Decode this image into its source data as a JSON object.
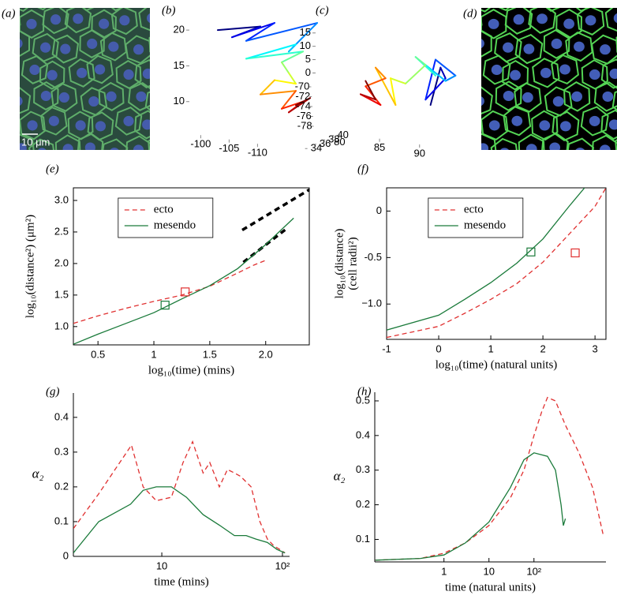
{
  "chart_data": [
    {
      "type": "image",
      "label": "(a)",
      "scale_bar": "10 μm",
      "background": "#2a4a3e",
      "edge_color": "#5fae6a",
      "nucleus_color": "#4a5fbf"
    },
    {
      "type": "trajectory3d",
      "label": "(b)",
      "colormap": "jet",
      "yaxis_side": "right",
      "xlim": [
        -98,
        -118
      ],
      "xticks": [
        -100,
        -105,
        -110
      ],
      "ylim": [
        33,
        41
      ],
      "yticks": [
        34,
        36,
        38,
        40
      ],
      "zlim": [
        6,
        22
      ],
      "zticks": [
        10,
        15,
        20
      ],
      "series": [
        {
          "x": [
            -102,
            -108,
            -104,
            -110,
            -106,
            -116,
            -112,
            -113,
            -106,
            -114,
            -111,
            -112,
            -113,
            -110,
            -108,
            -113,
            -111,
            -114,
            -112,
            -115,
            -113
          ],
          "z": [
            20,
            20.5,
            19,
            21,
            18.5,
            21,
            17,
            18,
            16,
            17,
            15.5,
            14,
            12.5,
            13,
            11,
            11.5,
            9,
            10,
            8.5,
            10.5,
            9.5
          ]
        }
      ]
    },
    {
      "type": "trajectory3d",
      "label": "(c)",
      "colormap": "jet",
      "yaxis_side": "left",
      "xlim": [
        77,
        92
      ],
      "xticks": [
        80,
        85,
        90
      ],
      "ylim": [
        -79,
        -69
      ],
      "yticks": [
        -70,
        -72,
        -74,
        -76,
        -78
      ],
      "zlim": [
        -20,
        17
      ],
      "zticks": [
        15,
        10,
        5,
        0
      ],
      "series": [
        {
          "x": [
            88.5,
            89.5,
            90,
            88,
            89,
            91,
            90,
            88,
            89,
            87,
            88,
            86,
            84.5,
            85,
            83,
            84,
            82,
            83.5,
            81.5,
            83,
            82
          ],
          "z": [
            -12,
            2,
            -2,
            -10,
            5,
            -1,
            -3,
            3,
            -1,
            6,
            3,
            -4,
            -2,
            -12,
            2,
            -2,
            -5,
            -12,
            -8,
            -10,
            -3
          ]
        }
      ]
    },
    {
      "type": "image",
      "label": "(d)",
      "background": "#000000",
      "edge_color": "#54d454",
      "nucleus_color": "#4f6fd8"
    },
    {
      "type": "line",
      "label": "(e)",
      "box": true,
      "legend": "upper left",
      "xlabel": "log₁₀(time) (mins)",
      "ylabel": [
        "log₁₀(distance²)  (μm²)"
      ],
      "xlim": [
        0.28,
        2.39
      ],
      "ylim": [
        0.71,
        3.2
      ],
      "xticks": [
        0.5,
        1,
        1.5,
        {
          "value": 2,
          "label": "2.0"
        }
      ],
      "yticks": [
        {
          "value": 1,
          "label": "1.0"
        },
        1.5,
        {
          "value": 2,
          "label": "2.0"
        },
        2.5,
        {
          "value": 3,
          "label": "3.0"
        }
      ],
      "series": [
        {
          "name": "ecto",
          "color": "#e03030",
          "dash": "dashed",
          "x": [
            0.28,
            0.5,
            0.75,
            1.0,
            1.25,
            1.5,
            1.75,
            1.9,
            2.0
          ],
          "values": [
            1.05,
            1.17,
            1.29,
            1.4,
            1.5,
            1.64,
            1.85,
            1.98,
            2.05
          ]
        },
        {
          "name": "mesendo",
          "color": "#1a7a3a",
          "dash": "solid",
          "x": [
            0.28,
            0.5,
            0.75,
            1.0,
            1.25,
            1.5,
            1.75,
            2.0,
            2.25
          ],
          "values": [
            0.72,
            0.88,
            1.05,
            1.22,
            1.44,
            1.65,
            1.92,
            2.3,
            2.72
          ]
        }
      ],
      "fit_lines": [
        {
          "color": "#000000",
          "x": [
            1.79,
            2.39
          ],
          "values": [
            2.53,
            3.17
          ]
        },
        {
          "color": "#000000",
          "x": [
            1.8,
            2.2
          ],
          "values": [
            2.02,
            2.57
          ]
        }
      ],
      "markers": [
        {
          "color": "#1a7a3a",
          "x": 1.1,
          "value": 1.34
        },
        {
          "color": "#e03030",
          "x": 1.28,
          "value": 1.55
        }
      ]
    },
    {
      "type": "line",
      "label": "(f)",
      "box": true,
      "legend": "upper left",
      "xlabel": "log₁₀(time) (natural units)",
      "ylabel": [
        "log₁₀(distance)",
        "(cell radii²)"
      ],
      "xlim": [
        -1,
        3.21
      ],
      "ylim": [
        -1.38,
        0.25
      ],
      "xticks": [
        -1,
        0,
        1,
        2,
        3
      ],
      "yticks": [
        0,
        -0.5,
        {
          "value": -1,
          "label": "−1.0"
        }
      ],
      "series": [
        {
          "name": "ecto",
          "color": "#e03030",
          "dash": "dashed",
          "x": [
            -1,
            0,
            0.5,
            1,
            1.5,
            2,
            2.5,
            3,
            3.21
          ],
          "values": [
            -1.36,
            -1.24,
            -1.1,
            -0.95,
            -0.78,
            -0.55,
            -0.25,
            0.05,
            0.25
          ]
        },
        {
          "name": "mesendo",
          "color": "#1a7a3a",
          "dash": "solid",
          "x": [
            -1,
            0,
            0.5,
            1,
            1.5,
            2,
            2.5,
            2.8
          ],
          "values": [
            -1.28,
            -1.12,
            -0.95,
            -0.77,
            -0.56,
            -0.3,
            0.05,
            0.25
          ]
        }
      ],
      "markers": [
        {
          "color": "#1a7a3a",
          "x": 1.77,
          "value": -0.44
        },
        {
          "color": "#e03030",
          "x": 2.62,
          "value": -0.45
        }
      ]
    },
    {
      "type": "line",
      "label": "(g)",
      "box": false,
      "xscale": "log",
      "xlabel": "time (mins)",
      "ylabel": [
        "α₂"
      ],
      "xlim": [
        1.85,
        114.5
      ],
      "ylim": [
        0,
        0.47
      ],
      "xticks": [
        10,
        {
          "value": 100,
          "label": "10²"
        }
      ],
      "yticks": [
        0,
        0.1,
        0.2,
        0.3,
        0.4
      ],
      "series": [
        {
          "color": "#e03030",
          "dash": "dashed",
          "x": [
            1.85,
            3,
            5.6,
            7,
            9,
            12,
            15,
            18,
            22,
            25,
            30,
            35,
            40,
            45,
            55,
            65,
            75,
            85,
            95,
            105
          ],
          "values": [
            0.08,
            0.18,
            0.32,
            0.2,
            0.16,
            0.17,
            0.27,
            0.33,
            0.24,
            0.27,
            0.2,
            0.25,
            0.24,
            0.23,
            0.2,
            0.1,
            0.05,
            0.03,
            0.02,
            0.01
          ]
        },
        {
          "color": "#1a7a3a",
          "dash": "solid",
          "x": [
            1.85,
            3,
            5.5,
            7,
            9,
            12,
            16,
            22,
            30,
            40,
            50,
            60,
            75,
            90,
            105
          ],
          "values": [
            0.01,
            0.1,
            0.15,
            0.19,
            0.2,
            0.2,
            0.17,
            0.12,
            0.09,
            0.06,
            0.06,
            0.05,
            0.04,
            0.02,
            0.01
          ]
        }
      ]
    },
    {
      "type": "line",
      "label": "(h)",
      "box": false,
      "xscale": "log",
      "xlabel": "time (natural units)",
      "ylabel": [
        "α₂"
      ],
      "xlim": [
        0.029,
        3981
      ],
      "ylim": [
        0.035,
        0.525
      ],
      "xticks": [
        1,
        10,
        {
          "value": 100,
          "label": "10²"
        }
      ],
      "yticks": [
        0.1,
        0.2,
        0.3,
        0.4,
        0.5
      ],
      "series": [
        {
          "color": "#e03030",
          "dash": "dashed",
          "x": [
            0.03,
            0.3,
            1,
            3,
            10,
            30,
            60,
            100,
            150,
            200,
            300,
            500,
            1000,
            2000,
            3500
          ],
          "values": [
            0.04,
            0.045,
            0.06,
            0.09,
            0.14,
            0.22,
            0.3,
            0.4,
            0.47,
            0.51,
            0.5,
            0.43,
            0.35,
            0.25,
            0.11
          ]
        },
        {
          "color": "#1a7a3a",
          "dash": "solid",
          "x": [
            0.03,
            0.3,
            1,
            3,
            10,
            30,
            60,
            100,
            200,
            300,
            400,
            450,
            500
          ],
          "values": [
            0.04,
            0.045,
            0.055,
            0.09,
            0.15,
            0.25,
            0.33,
            0.35,
            0.34,
            0.3,
            0.2,
            0.14,
            0.16
          ]
        }
      ]
    }
  ]
}
